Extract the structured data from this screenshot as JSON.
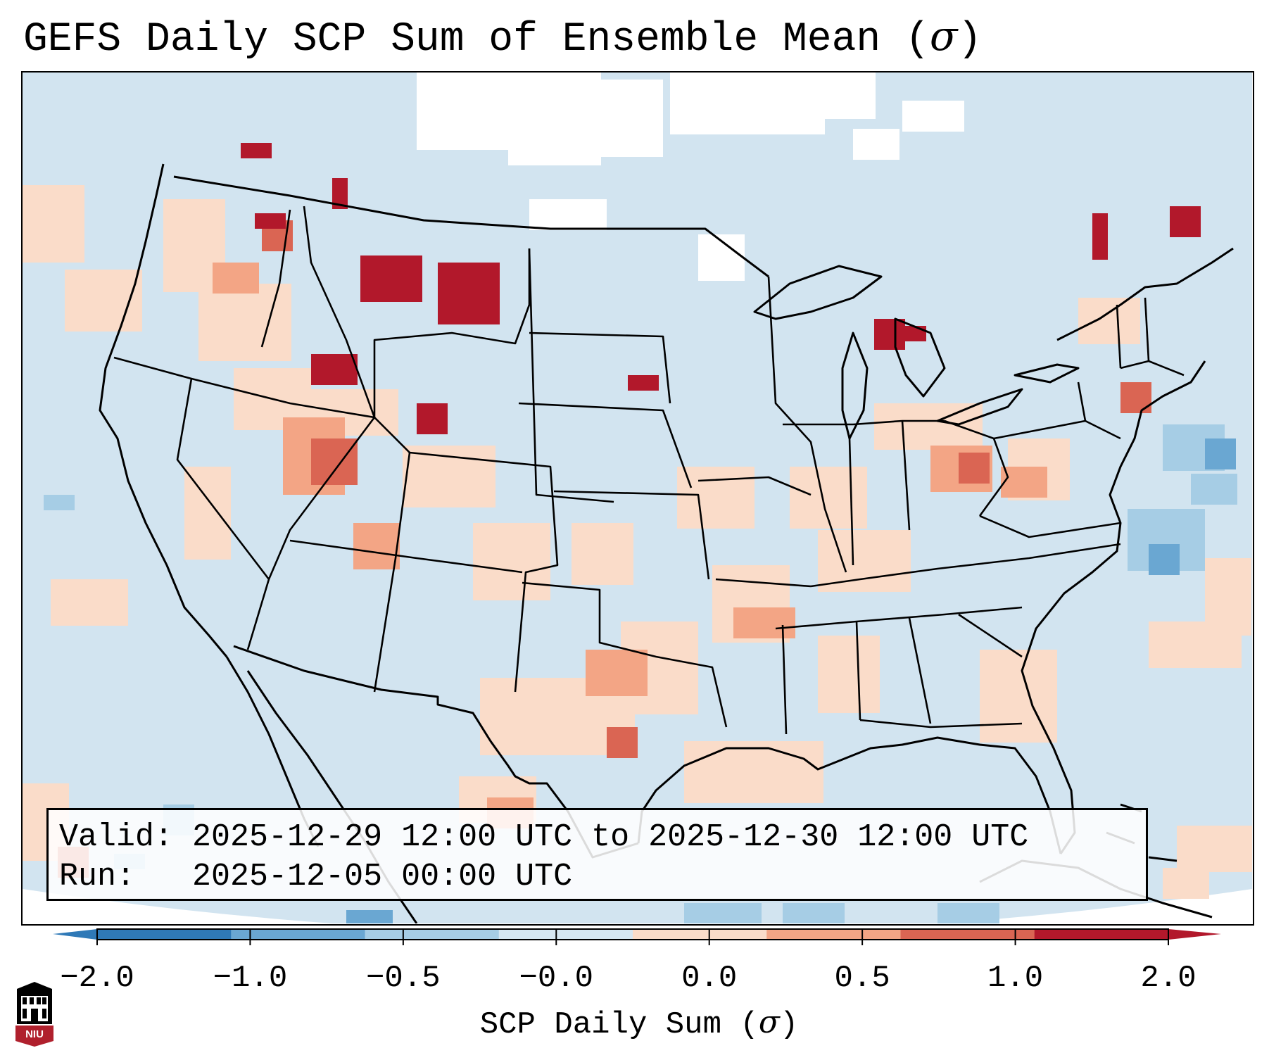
{
  "title": {
    "text": "GEFS Daily SCP Sum of Ensemble Mean (",
    "sigma": "σ",
    "close": ")"
  },
  "info": {
    "valid_label": "Valid:",
    "valid_value": "2025-12-29 12:00 UTC to 2025-12-30 12:00 UTC",
    "run_label": "Run:",
    "run_value": "2025-12-05 00:00 UTC"
  },
  "colorbar": {
    "ticks": [
      "−2.0",
      "−1.0",
      "−0.5",
      "−0.0",
      "0.0",
      "0.5",
      "1.0",
      "2.0"
    ],
    "label_text": "SCP Daily Sum (",
    "label_sigma": "σ",
    "label_close": ")",
    "bin_colors": [
      "#2f79b7",
      "#6aa7d2",
      "#a6cde5",
      "#d6e7f2",
      "#fadcc9",
      "#f3a585",
      "#da6553",
      "#b2182b"
    ],
    "extend_min_color": "#2f79b7",
    "extend_max_color": "#b2182b"
  },
  "map": {
    "background_color": "#d2e4f0",
    "outside_color": "#ffffff",
    "boundary_color": "#000000"
  },
  "logo": {
    "text": "NIU",
    "color": "#b0202d"
  }
}
